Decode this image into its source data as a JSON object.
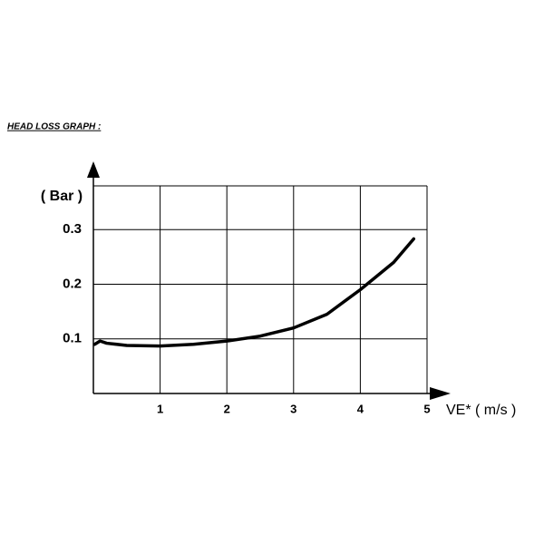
{
  "chart_data": {
    "type": "line",
    "title": "HEAD LOSS GRAPH :",
    "y_label": "( Bar )",
    "x_label": "VE* ( m/s )",
    "x": [
      0.02,
      0.1,
      0.2,
      0.5,
      1,
      1.5,
      2,
      2.5,
      3,
      3.5,
      4,
      4.5,
      4.8
    ],
    "series": [
      {
        "color": "#000000",
        "values": [
          0.09,
          0.096,
          0.092,
          0.088,
          0.087,
          0.09,
          0.096,
          0.105,
          0.12,
          0.145,
          0.19,
          0.24,
          0.283
        ]
      }
    ],
    "xlim": [
      0,
      5
    ],
    "ylim": [
      0,
      0.38
    ],
    "xticks": [
      1,
      2,
      3,
      4,
      5
    ],
    "yticks": [
      0.1,
      0.2,
      0.3
    ],
    "grid": true
  }
}
